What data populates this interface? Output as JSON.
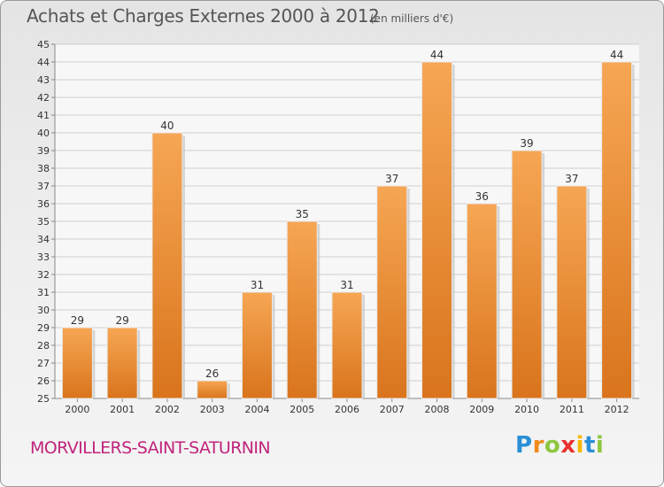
{
  "header": {
    "title": "Achats et Charges Externes 2000 à 2012",
    "unit": "(en milliers d'€)"
  },
  "footer": {
    "commune": "MORVILLERS-SAINT-SATURNIN",
    "brand_letters": [
      {
        "ch": "P",
        "color": "#2a8fd6"
      },
      {
        "ch": "r",
        "color": "#f08a1c"
      },
      {
        "ch": "o",
        "color": "#8cc63f"
      },
      {
        "ch": "x",
        "color": "#e8312f"
      },
      {
        "ch": "i",
        "color": "#f5b800"
      },
      {
        "ch": "t",
        "color": "#2a8fd6"
      },
      {
        "ch": "i",
        "color": "#8cc63f"
      }
    ]
  },
  "colors": {
    "bar_light": "#f6a654",
    "bar_dark": "#d9741c",
    "grid": "#cfcfcf",
    "axis_text": "#333333"
  },
  "chart_data": {
    "type": "bar",
    "categories": [
      "2000",
      "2001",
      "2002",
      "2003",
      "2004",
      "2005",
      "2006",
      "2007",
      "2008",
      "2009",
      "2010",
      "2011",
      "2012"
    ],
    "values": [
      29,
      29,
      40,
      26,
      31,
      35,
      31,
      37,
      44,
      36,
      39,
      37,
      44
    ],
    "ylim": [
      25,
      45
    ],
    "yticks": [
      25,
      26,
      27,
      28,
      29,
      30,
      31,
      32,
      33,
      34,
      35,
      36,
      37,
      38,
      39,
      40,
      41,
      42,
      43,
      44,
      45
    ],
    "grid": true,
    "data_labels": true
  }
}
